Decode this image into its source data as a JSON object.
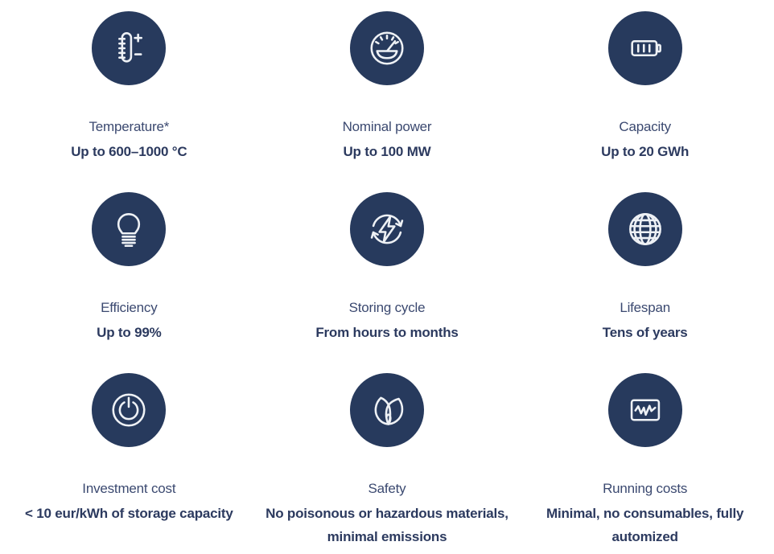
{
  "colors": {
    "badge_bg": "#273a5d",
    "icon_stroke": "#eef1f5",
    "label_text": "#3b4970",
    "value_text": "#2c3a5f",
    "page_bg": "#ffffff"
  },
  "features": [
    {
      "id": "temperature",
      "icon": "thermometer-icon",
      "label": "Temperature*",
      "value": "Up to 600–1000 °C"
    },
    {
      "id": "nominal-power",
      "icon": "gauge-icon",
      "label": "Nominal power",
      "value": "Up to 100 MW"
    },
    {
      "id": "capacity",
      "icon": "battery-icon",
      "label": "Capacity",
      "value": "Up to 20 GWh"
    },
    {
      "id": "efficiency",
      "icon": "lightbulb-icon",
      "label": "Efficiency",
      "value": "Up to 99%"
    },
    {
      "id": "storing-cycle",
      "icon": "recycle-bolt-icon",
      "label": "Storing cycle",
      "value": "From hours to months"
    },
    {
      "id": "lifespan",
      "icon": "globe-icon",
      "label": "Lifespan",
      "value": "Tens of years"
    },
    {
      "id": "investment-cost",
      "icon": "power-icon",
      "label": "Investment cost",
      "value": "< 10 eur/kWh of storage capacity"
    },
    {
      "id": "safety",
      "icon": "leaf-icon",
      "label": "Safety",
      "value": "No poisonous or hazardous materials, minimal emissions"
    },
    {
      "id": "running-costs",
      "icon": "monitor-chart-icon",
      "label": "Running costs",
      "value": "Minimal, no consumables, fully automized"
    }
  ]
}
